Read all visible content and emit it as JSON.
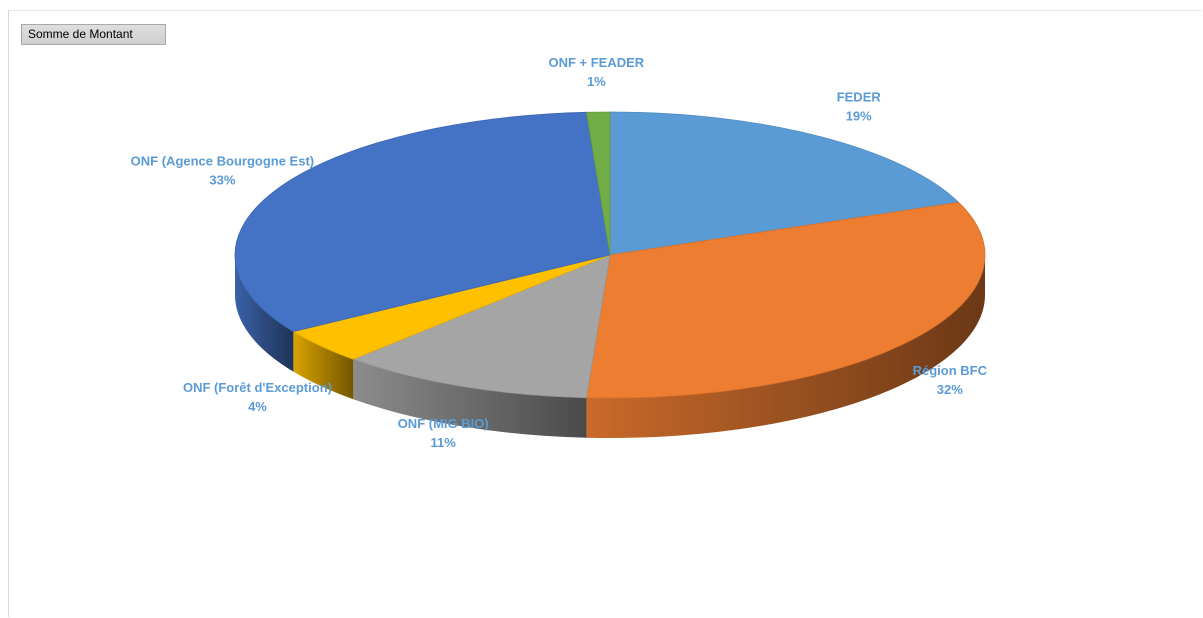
{
  "field_button": {
    "label": "Somme de Montant"
  },
  "chart_data": {
    "type": "pie",
    "style": "3d",
    "measure": "Somme de Montant",
    "label_color": "#5b9bd5",
    "series": [
      {
        "name": "FEDER",
        "percent": 19,
        "label": "19%",
        "color": "#5b9bd5"
      },
      {
        "name": "Région BFC",
        "percent": 32,
        "label": "32%",
        "color": "#ed7d31"
      },
      {
        "name": "ONF (MIG BIO)",
        "percent": 11,
        "label": "11%",
        "color": "#a5a5a5"
      },
      {
        "name": "ONF (Forêt d'Exception)",
        "percent": 4,
        "label": "4%",
        "color": "#ffc000"
      },
      {
        "name": "ONF (Agence Bourgogne Est)",
        "percent": 33,
        "label": "33%",
        "color": "#4472c4"
      },
      {
        "name": "ONF + FEADER",
        "percent": 1,
        "label": "1%",
        "color": "#70ad47"
      }
    ]
  }
}
